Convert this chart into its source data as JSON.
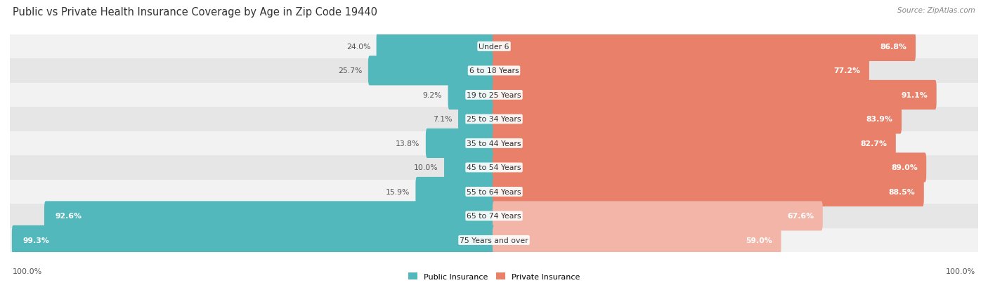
{
  "title": "Public vs Private Health Insurance Coverage by Age in Zip Code 19440",
  "source": "Source: ZipAtlas.com",
  "categories": [
    "Under 6",
    "6 to 18 Years",
    "19 to 25 Years",
    "25 to 34 Years",
    "35 to 44 Years",
    "45 to 54 Years",
    "55 to 64 Years",
    "65 to 74 Years",
    "75 Years and over"
  ],
  "public_values": [
    24.0,
    25.7,
    9.2,
    7.1,
    13.8,
    10.0,
    15.9,
    92.6,
    99.3
  ],
  "private_values": [
    86.8,
    77.2,
    91.1,
    83.9,
    82.7,
    89.0,
    88.5,
    67.6,
    59.0
  ],
  "public_color": "#52b8bc",
  "private_color": "#e8806a",
  "private_color_light": "#f2b5a8",
  "public_label": "Public Insurance",
  "private_label": "Private Insurance",
  "row_bg_light": "#f2f2f2",
  "row_bg_dark": "#e6e6e6",
  "max_value": 100.0,
  "title_fontsize": 10.5,
  "bar_label_fontsize": 7.8,
  "cat_label_fontsize": 7.8,
  "source_fontsize": 7.5,
  "legend_fontsize": 8.0
}
